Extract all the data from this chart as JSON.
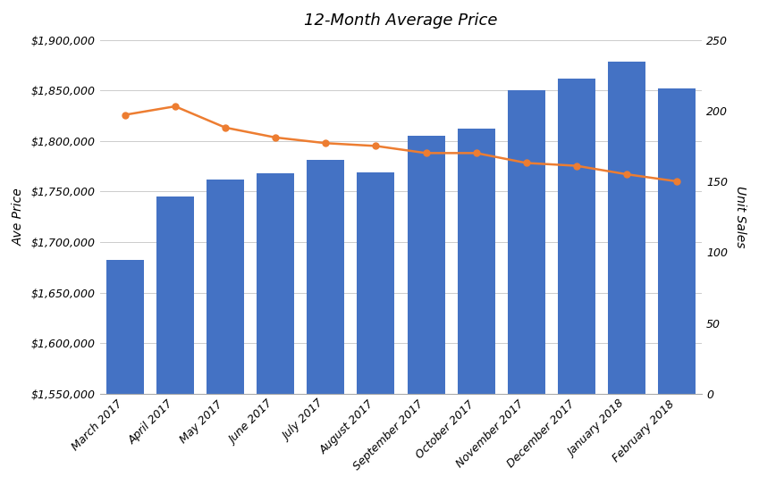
{
  "title": "12-Month Average Price",
  "categories": [
    "March 2017",
    "April 2017",
    "May 2017",
    "June 2017",
    "July 2017",
    "August 2017",
    "September 2017",
    "October 2017",
    "November 2017",
    "December 2017",
    "January 2018",
    "February 2018"
  ],
  "bar_values": [
    1682000,
    1745000,
    1762000,
    1768000,
    1781000,
    1769000,
    1805000,
    1812000,
    1850000,
    1862000,
    1878000,
    1852000
  ],
  "line_values": [
    197,
    203,
    188,
    181,
    177,
    175,
    170,
    170,
    163,
    161,
    155,
    150
  ],
  "bar_color": "#4472C4",
  "line_color": "#ED7D31",
  "ylabel_left": "Ave Price",
  "ylabel_right": "Unit Sales",
  "ylim_left": [
    1550000,
    1900000
  ],
  "ylim_right": [
    0,
    250
  ],
  "yticks_left": [
    1550000,
    1600000,
    1650000,
    1700000,
    1750000,
    1800000,
    1850000,
    1900000
  ],
  "yticks_right": [
    0,
    50,
    100,
    150,
    200,
    250
  ],
  "background_color": "#ffffff",
  "grid_color": "#cccccc",
  "title_fontsize": 13,
  "axis_label_fontsize": 10,
  "tick_fontsize": 9
}
